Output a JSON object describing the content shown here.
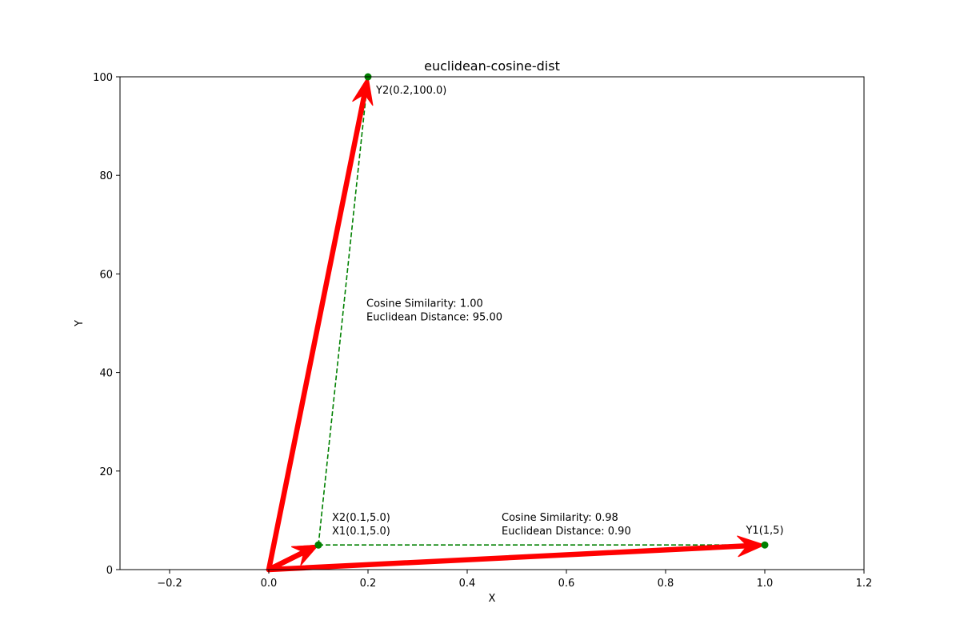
{
  "chart_data": {
    "type": "line",
    "title": "euclidean-cosine-dist",
    "xlabel": "X",
    "ylabel": "Y",
    "xlim": [
      -0.3,
      1.2
    ],
    "ylim": [
      0,
      100
    ],
    "xticks": [
      -0.2,
      0.0,
      0.2,
      0.4,
      0.6,
      0.8,
      1.0,
      1.2
    ],
    "xtick_labels": [
      "−0.2",
      "0.0",
      "0.2",
      "0.4",
      "0.6",
      "0.8",
      "1.0",
      "1.2"
    ],
    "yticks": [
      0,
      20,
      40,
      60,
      80,
      100
    ],
    "ytick_labels": [
      "0",
      "20",
      "40",
      "60",
      "80",
      "100"
    ],
    "grid": false,
    "colors": {
      "vector": "#ff0000",
      "point": "#008000",
      "connector": "#008000"
    },
    "vectors": [
      {
        "from": [
          0,
          0
        ],
        "to": [
          0.1,
          5.0
        ]
      },
      {
        "from": [
          0,
          0
        ],
        "to": [
          1,
          5
        ]
      },
      {
        "from": [
          0,
          0
        ],
        "to": [
          0.1,
          5.0
        ]
      },
      {
        "from": [
          0,
          0
        ],
        "to": [
          0.2,
          100.0
        ]
      }
    ],
    "points": [
      {
        "label": "X1(0.1,5.0)",
        "x": 0.1,
        "y": 5.0
      },
      {
        "label": "Y1(1,5)",
        "x": 1,
        "y": 5
      },
      {
        "label": "X2(0.1,5.0)",
        "x": 0.1,
        "y": 5.0
      },
      {
        "label": "Y2(0.2,100.0)",
        "x": 0.2,
        "y": 100.0
      }
    ],
    "connectors": [
      {
        "from": [
          0.1,
          5.0
        ],
        "to": [
          1,
          5
        ],
        "style": "dashed"
      },
      {
        "from": [
          0.1,
          5.0
        ],
        "to": [
          0.2,
          100.0
        ],
        "style": "dashed"
      }
    ],
    "annotations": [
      {
        "lines": [
          "Cosine Similarity: 0.98",
          "Euclidean Distance: 0.90"
        ]
      },
      {
        "lines": [
          "Cosine Similarity: 1.00",
          "Euclidean Distance: 95.00"
        ]
      }
    ]
  }
}
